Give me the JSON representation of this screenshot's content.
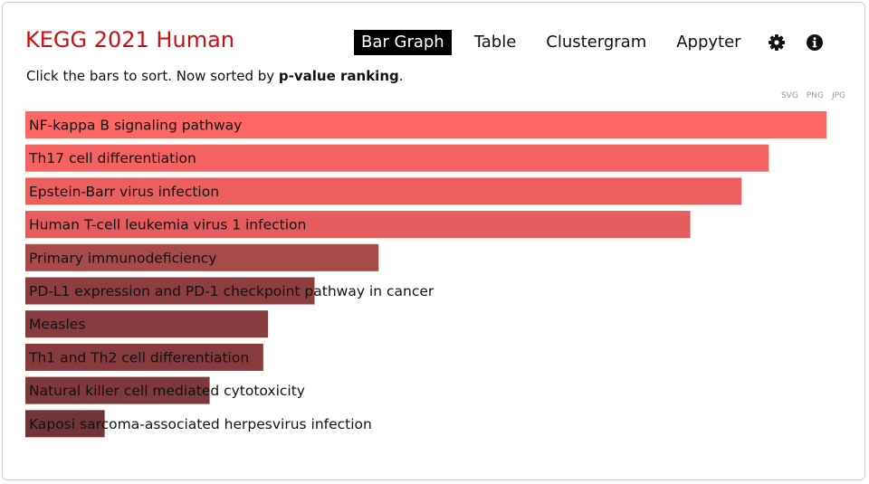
{
  "header": {
    "title": "KEGG 2021 Human",
    "tabs": [
      {
        "label": "Bar Graph",
        "active": true
      },
      {
        "label": "Table",
        "active": false
      },
      {
        "label": "Clustergram",
        "active": false
      },
      {
        "label": "Appyter",
        "active": false
      }
    ],
    "icons": [
      "gear-icon",
      "info-icon"
    ]
  },
  "instructions": {
    "prefix": "Click the bars to sort. Now sorted by ",
    "sort_key": "p-value ranking",
    "suffix": "."
  },
  "exports": [
    "SVG",
    "PNG",
    "JPG"
  ],
  "colors": {
    "title": "#cc1010",
    "active_tab_bg": "#000000",
    "bar_strong": "#ff6666",
    "bar_weak": "#7a3538"
  },
  "chart_data": {
    "type": "bar",
    "orientation": "horizontal",
    "sorted_by": "p-value ranking",
    "categories": [
      "NF-kappa B signaling pathway",
      "Th17 cell differentiation",
      "Epstein-Barr virus infection",
      "Human T-cell leukemia virus 1 infection",
      "Primary immunodeficiency",
      "PD-L1 expression and PD-1 checkpoint pathway in cancer",
      "Measles",
      "Th1 and Th2 cell differentiation",
      "Natural killer cell mediated cytotoxicity",
      "Kaposi sarcoma-associated herpesvirus infection"
    ],
    "values": [
      1.0,
      0.928,
      0.894,
      0.83,
      0.441,
      0.361,
      0.303,
      0.297,
      0.23,
      0.099
    ],
    "bar_colors": [
      "#ff6666",
      "#f56262",
      "#ec5f5f",
      "#e45c5e",
      "#a84a49",
      "#8e3e41",
      "#883b3e",
      "#873b3e",
      "#7f383b",
      "#703539"
    ],
    "xlim": [
      0,
      1
    ],
    "grid": false,
    "legend": "none"
  }
}
